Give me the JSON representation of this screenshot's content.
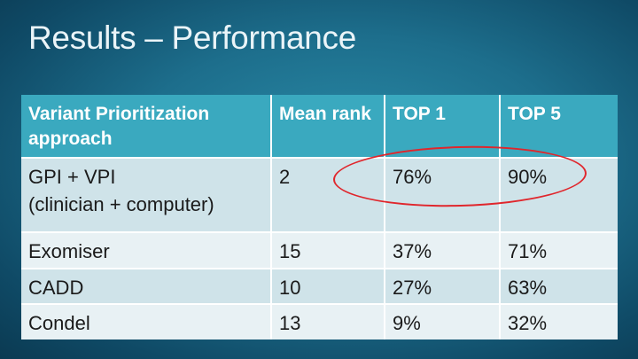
{
  "title": "Results – Performance",
  "table": {
    "headers": [
      "Variant Prioritization approach",
      "Mean rank",
      "TOP 1",
      "TOP 5"
    ],
    "rows": [
      [
        "GPI + VPI\n(clinician + computer)",
        "2",
        "76%",
        "90%"
      ],
      [
        "Exomiser",
        "15",
        "37%",
        "71%"
      ],
      [
        "CADD",
        "10",
        "27%",
        "63%"
      ],
      [
        "Condel",
        "13",
        "9%",
        "32%"
      ]
    ]
  },
  "colors": {
    "header_bg": "#3aa9bf",
    "row_dark": "#cfe3e9",
    "row_light": "#e8f1f4",
    "highlight": "#e0262c"
  }
}
